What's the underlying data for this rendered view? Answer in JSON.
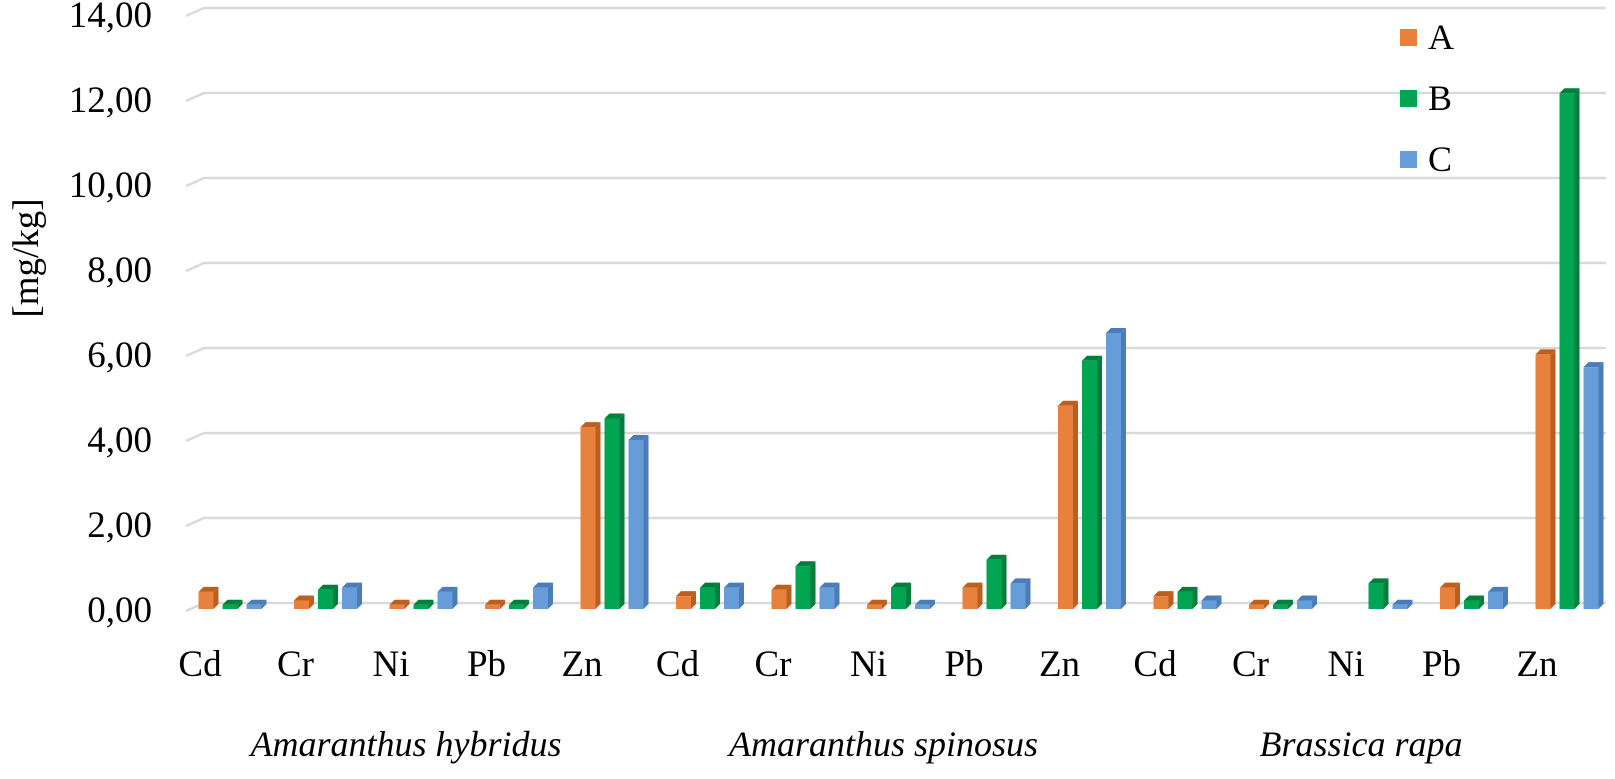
{
  "chart_data": {
    "type": "bar",
    "style": "3d-clustered-column",
    "title": "",
    "xlabel": "",
    "ylabel": "[mg/kg]",
    "ylim": [
      0,
      14
    ],
    "y_tick_step": 2,
    "y_tick_labels": [
      "0,00",
      "2,00",
      "4,00",
      "6,00",
      "8,00",
      "10,00",
      "12,00",
      "14,00"
    ],
    "decimal_style": "comma",
    "grid": true,
    "grid_color": "#D9D9D9",
    "text_color": "#000000",
    "legend_position": "top-right",
    "groups": [
      {
        "label": "Amaranthus hybridus",
        "categories": [
          "Cd",
          "Cr",
          "Ni",
          "Pb",
          "Zn"
        ]
      },
      {
        "label": "Amaranthus spinosus",
        "categories": [
          "Cd",
          "Cr",
          "Ni",
          "Pb",
          "Zn"
        ]
      },
      {
        "label": "Brassica rapa",
        "categories": [
          "Cd",
          "Cr",
          "Ni",
          "Pb",
          "Zn"
        ]
      }
    ],
    "series": [
      {
        "name": "A",
        "color": "#E8813C",
        "color_dark": "#BC5F1E",
        "values": [
          [
            0.4,
            0.2,
            0.1,
            0.1,
            4.25
          ],
          [
            0.3,
            0.45,
            0.1,
            0.5,
            4.75
          ],
          [
            0.3,
            0.1,
            0.0,
            0.5,
            5.95
          ]
        ]
      },
      {
        "name": "B",
        "color": "#00A551",
        "color_dark": "#007E3C",
        "values": [
          [
            0.1,
            0.45,
            0.1,
            0.1,
            4.45
          ],
          [
            0.5,
            1.0,
            0.5,
            1.15,
            5.8
          ],
          [
            0.4,
            0.1,
            0.6,
            0.2,
            12.05
          ]
        ]
      },
      {
        "name": "C",
        "color": "#669DD9",
        "color_dark": "#4A7CB8",
        "values": [
          [
            0.1,
            0.5,
            0.4,
            0.5,
            3.95
          ],
          [
            0.5,
            0.5,
            0.1,
            0.6,
            6.45
          ],
          [
            0.2,
            0.2,
            0.1,
            0.4,
            5.65
          ]
        ]
      }
    ]
  }
}
